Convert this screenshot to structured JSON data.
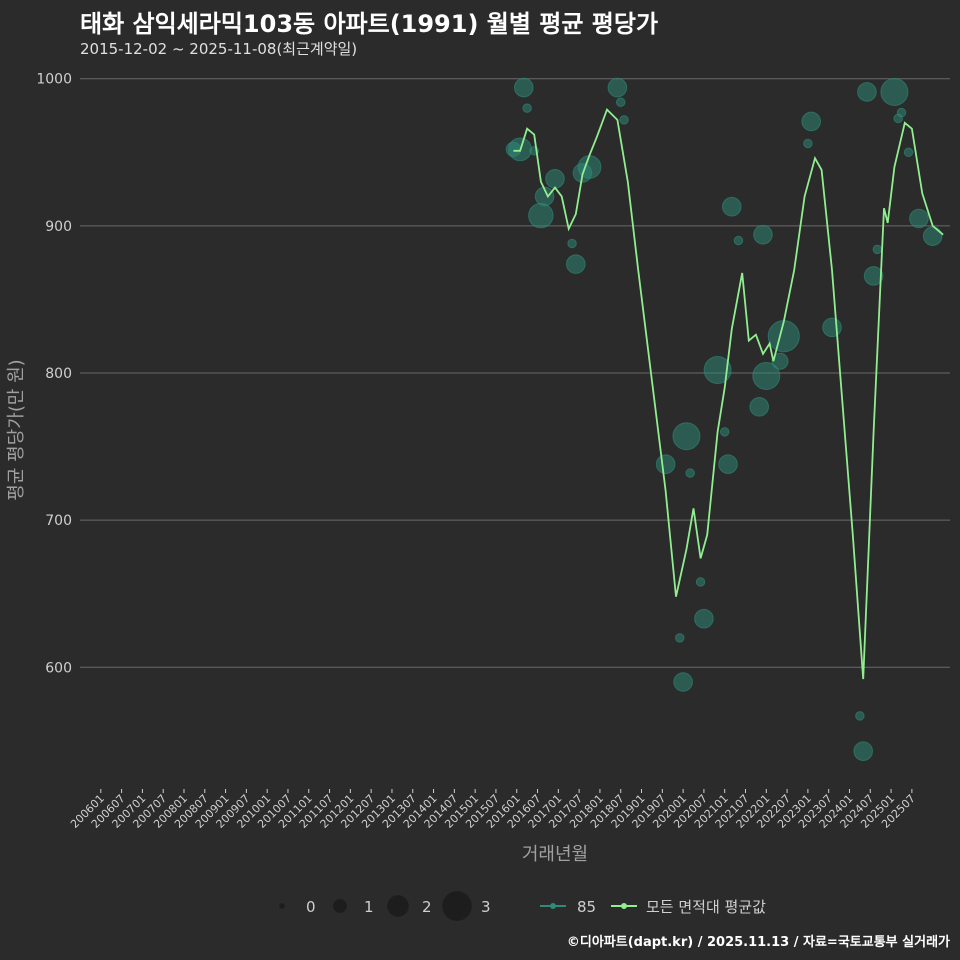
{
  "title": "태화 삼익세라믹103동 아파트(1991) 월별 평균 평당가",
  "subtitle": "2015-12-02 ~ 2025-11-08(최근계약일)",
  "footer": "©디아파트(dapt.kr) / 2025.11.13 / 자료=국토교통부 실거래가",
  "colors": {
    "background": "#2b2b2b",
    "grid": "#6a6a6a",
    "line": "#90ee90",
    "bubble": "#2e8b7a",
    "text": "#cfcfcf"
  },
  "chart_data": {
    "type": "scatter",
    "xlabel": "거래년월",
    "ylabel": "평균 평당가(만 원)",
    "ylim": [
      520,
      1010
    ],
    "yticks": [
      600,
      700,
      800,
      900,
      1000
    ],
    "x_start": "2006-01",
    "x_end": "2025-12",
    "xticks": [
      "200601",
      "200607",
      "200701",
      "200707",
      "200801",
      "200807",
      "200901",
      "200907",
      "201001",
      "201007",
      "201101",
      "201107",
      "201201",
      "201207",
      "201301",
      "201307",
      "201401",
      "201407",
      "201501",
      "201507",
      "201601",
      "201607",
      "201701",
      "201707",
      "201801",
      "201807",
      "201901",
      "201907",
      "202001",
      "202007",
      "202101",
      "202107",
      "202201",
      "202207",
      "202301",
      "202307",
      "202401",
      "202407",
      "202501",
      "202507"
    ],
    "legend_size": {
      "title": "",
      "values": [
        0,
        1,
        2,
        3
      ],
      "labels": [
        "0",
        "1",
        "2",
        "3"
      ]
    },
    "legend_series": [
      {
        "name": "85",
        "type": "bubble"
      },
      {
        "name": "모든 면적대 평균값",
        "type": "line"
      }
    ],
    "bubbles": [
      {
        "x": 2015.92,
        "y": 952,
        "size": 1
      },
      {
        "x": 2016.08,
        "y": 952,
        "size": 2
      },
      {
        "x": 2016.17,
        "y": 994,
        "size": 1.5
      },
      {
        "x": 2016.25,
        "y": 980,
        "size": 0.3
      },
      {
        "x": 2016.42,
        "y": 951,
        "size": 0.3
      },
      {
        "x": 2016.58,
        "y": 907,
        "size": 2.2
      },
      {
        "x": 2016.67,
        "y": 920,
        "size": 1.5
      },
      {
        "x": 2016.92,
        "y": 932,
        "size": 1.5
      },
      {
        "x": 2017.33,
        "y": 888,
        "size": 0.3
      },
      {
        "x": 2017.42,
        "y": 874,
        "size": 1.5
      },
      {
        "x": 2017.58,
        "y": 936,
        "size": 1.5
      },
      {
        "x": 2017.75,
        "y": 940,
        "size": 2
      },
      {
        "x": 2018.42,
        "y": 994,
        "size": 1.5
      },
      {
        "x": 2018.5,
        "y": 984,
        "size": 0.3
      },
      {
        "x": 2018.58,
        "y": 972,
        "size": 0.3
      },
      {
        "x": 2019.58,
        "y": 738,
        "size": 1.5
      },
      {
        "x": 2019.92,
        "y": 620,
        "size": 0.3
      },
      {
        "x": 2020.0,
        "y": 590,
        "size": 1.5
      },
      {
        "x": 2020.08,
        "y": 757,
        "size": 2.5
      },
      {
        "x": 2020.17,
        "y": 732,
        "size": 0.3
      },
      {
        "x": 2020.42,
        "y": 658,
        "size": 0.3
      },
      {
        "x": 2020.5,
        "y": 633,
        "size": 1.5
      },
      {
        "x": 2020.83,
        "y": 802,
        "size": 2.5
      },
      {
        "x": 2021.0,
        "y": 760,
        "size": 0.3
      },
      {
        "x": 2021.08,
        "y": 738,
        "size": 1.5
      },
      {
        "x": 2021.17,
        "y": 913,
        "size": 1.5
      },
      {
        "x": 2021.33,
        "y": 890,
        "size": 0.3
      },
      {
        "x": 2021.83,
        "y": 777,
        "size": 1.5
      },
      {
        "x": 2021.92,
        "y": 894,
        "size": 1.5
      },
      {
        "x": 2022.0,
        "y": 798,
        "size": 2.5
      },
      {
        "x": 2022.33,
        "y": 808,
        "size": 1.2
      },
      {
        "x": 2022.42,
        "y": 825,
        "size": 3
      },
      {
        "x": 2023.0,
        "y": 956,
        "size": 0.3
      },
      {
        "x": 2023.08,
        "y": 971,
        "size": 1.5
      },
      {
        "x": 2023.58,
        "y": 831,
        "size": 1.5
      },
      {
        "x": 2024.25,
        "y": 567,
        "size": 0.3
      },
      {
        "x": 2024.33,
        "y": 543,
        "size": 1.5
      },
      {
        "x": 2024.42,
        "y": 991,
        "size": 1.5
      },
      {
        "x": 2024.58,
        "y": 866,
        "size": 1.5
      },
      {
        "x": 2024.67,
        "y": 884,
        "size": 0.3
      },
      {
        "x": 2025.08,
        "y": 991,
        "size": 2.5
      },
      {
        "x": 2025.17,
        "y": 973,
        "size": 0.3
      },
      {
        "x": 2025.25,
        "y": 977,
        "size": 0.3
      },
      {
        "x": 2025.42,
        "y": 950,
        "size": 0.3
      },
      {
        "x": 2025.67,
        "y": 905,
        "size": 1.5
      },
      {
        "x": 2026.0,
        "y": 893,
        "size": 1.5
      }
    ],
    "line": [
      {
        "x": 2015.92,
        "y": 951
      },
      {
        "x": 2016.08,
        "y": 951
      },
      {
        "x": 2016.25,
        "y": 966
      },
      {
        "x": 2016.42,
        "y": 962
      },
      {
        "x": 2016.58,
        "y": 930
      },
      {
        "x": 2016.75,
        "y": 920
      },
      {
        "x": 2016.92,
        "y": 926
      },
      {
        "x": 2017.08,
        "y": 920
      },
      {
        "x": 2017.25,
        "y": 898
      },
      {
        "x": 2017.42,
        "y": 908
      },
      {
        "x": 2017.58,
        "y": 935
      },
      {
        "x": 2017.75,
        "y": 948
      },
      {
        "x": 2017.92,
        "y": 960
      },
      {
        "x": 2018.17,
        "y": 979
      },
      {
        "x": 2018.42,
        "y": 972
      },
      {
        "x": 2018.67,
        "y": 930
      },
      {
        "x": 2018.92,
        "y": 870
      },
      {
        "x": 2019.25,
        "y": 795
      },
      {
        "x": 2019.58,
        "y": 720
      },
      {
        "x": 2019.83,
        "y": 648
      },
      {
        "x": 2020.08,
        "y": 680
      },
      {
        "x": 2020.25,
        "y": 708
      },
      {
        "x": 2020.42,
        "y": 674
      },
      {
        "x": 2020.58,
        "y": 690
      },
      {
        "x": 2020.83,
        "y": 760
      },
      {
        "x": 2021.0,
        "y": 790
      },
      {
        "x": 2021.17,
        "y": 830
      },
      {
        "x": 2021.42,
        "y": 868
      },
      {
        "x": 2021.58,
        "y": 822
      },
      {
        "x": 2021.75,
        "y": 826
      },
      {
        "x": 2021.92,
        "y": 813
      },
      {
        "x": 2022.08,
        "y": 820
      },
      {
        "x": 2022.17,
        "y": 808
      },
      {
        "x": 2022.42,
        "y": 835
      },
      {
        "x": 2022.67,
        "y": 870
      },
      {
        "x": 2022.92,
        "y": 920
      },
      {
        "x": 2023.17,
        "y": 946
      },
      {
        "x": 2023.33,
        "y": 938
      },
      {
        "x": 2023.58,
        "y": 870
      },
      {
        "x": 2023.83,
        "y": 780
      },
      {
        "x": 2024.08,
        "y": 690
      },
      {
        "x": 2024.33,
        "y": 592
      },
      {
        "x": 2024.58,
        "y": 760
      },
      {
        "x": 2024.83,
        "y": 912
      },
      {
        "x": 2024.92,
        "y": 902
      },
      {
        "x": 2025.08,
        "y": 940
      },
      {
        "x": 2025.33,
        "y": 970
      },
      {
        "x": 2025.5,
        "y": 966
      },
      {
        "x": 2025.75,
        "y": 922
      },
      {
        "x": 2026.0,
        "y": 900
      },
      {
        "x": 2026.25,
        "y": 894
      }
    ]
  }
}
